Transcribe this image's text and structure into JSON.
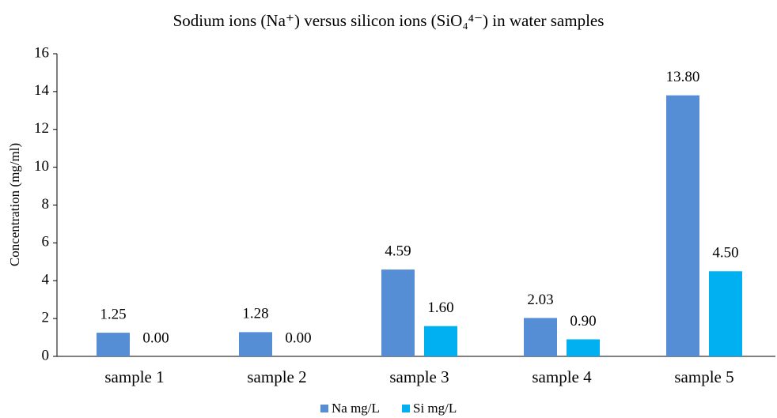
{
  "chart_data": {
    "type": "bar",
    "title": "Sodium ions (Na⁺) versus silicon ions (SiO₄⁴⁻) in water samples",
    "y_label": "Concentration (mg/ml)",
    "categories": [
      "sample 1",
      "sample 2",
      "sample 3",
      "sample 4",
      "sample 5"
    ],
    "series": [
      {
        "name": "Na mg/L",
        "color": "#558ed5",
        "values": [
          1.25,
          1.28,
          4.59,
          2.03,
          13.8
        ],
        "value_labels": [
          "1.25",
          "1.28",
          "4.59",
          "2.03",
          "13.80"
        ]
      },
      {
        "name": "Si mg/L",
        "color": "#00b0f0",
        "values": [
          0,
          0,
          1.6,
          0.9,
          4.5
        ],
        "value_labels": [
          "0.00",
          "0.00",
          "1.60",
          "0.90",
          "4.50"
        ]
      }
    ],
    "ylim": [
      0,
      16
    ],
    "yticks": [
      0,
      2,
      4,
      6,
      8,
      10,
      12,
      14,
      16
    ],
    "grid": false,
    "legend": "bottom"
  }
}
